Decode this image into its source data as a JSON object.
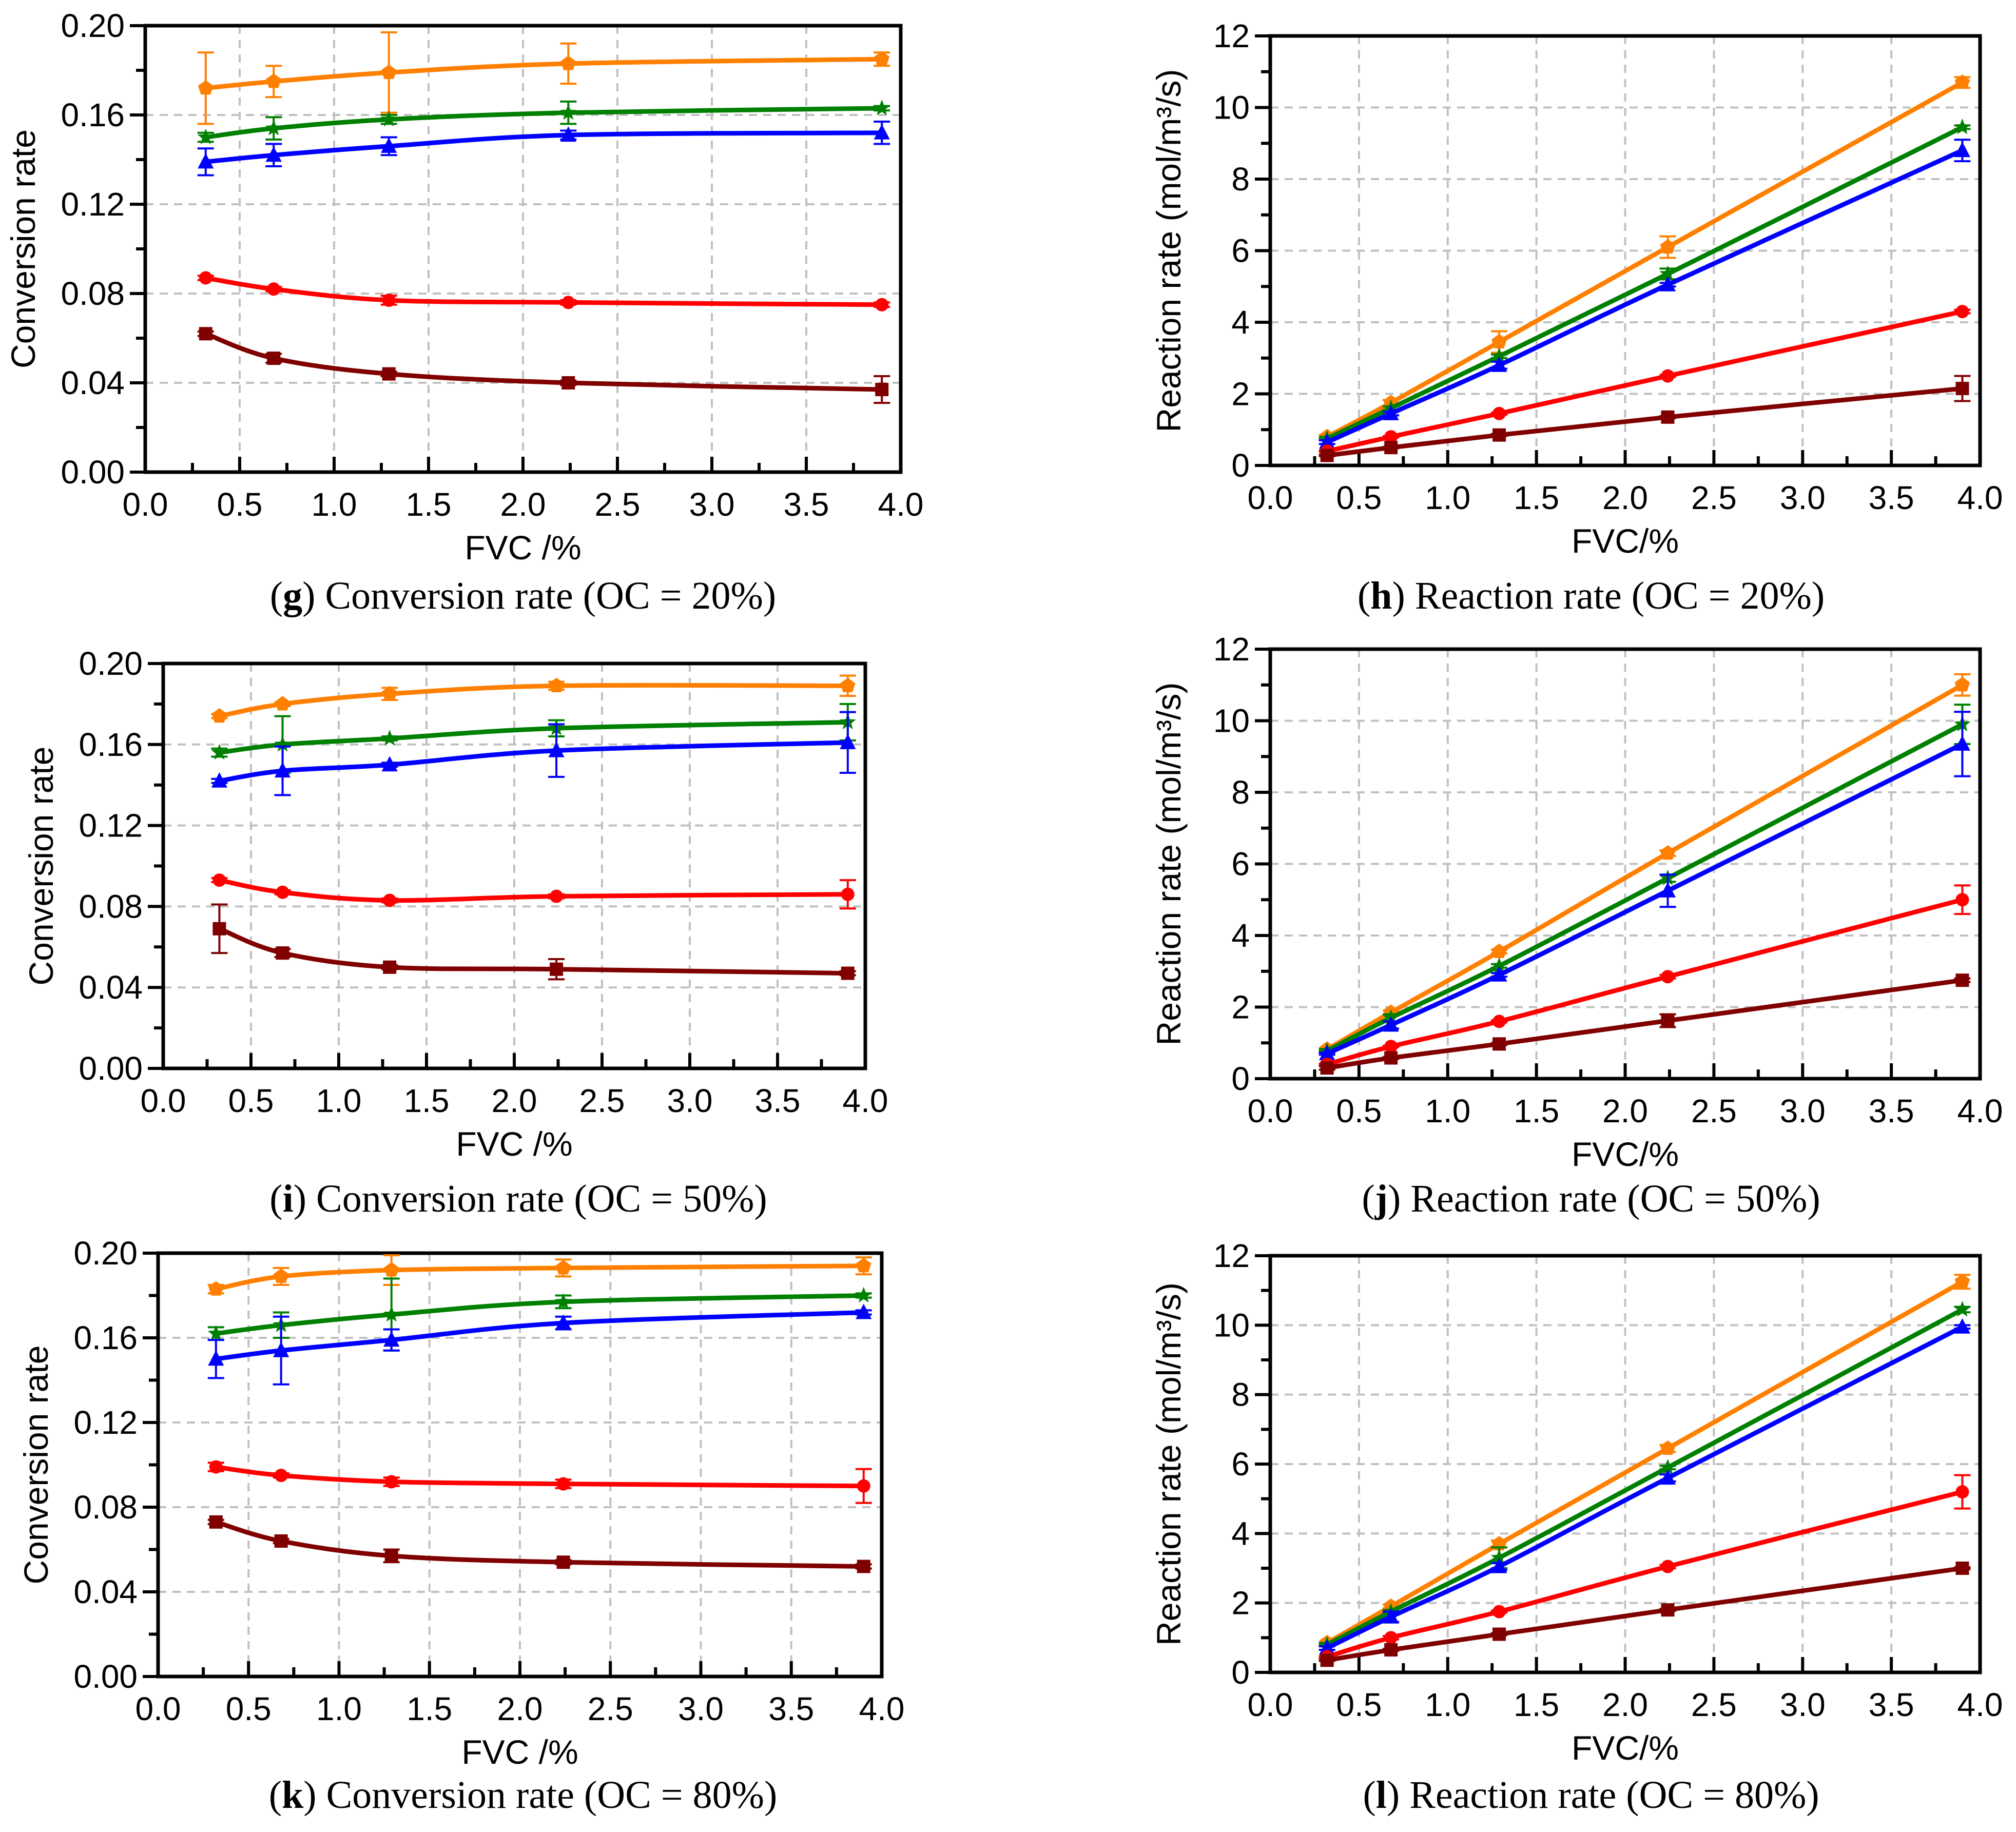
{
  "chart_data": [
    {
      "id": "g",
      "type": "line",
      "caption": {
        "letter": "g",
        "text": "Conversion rate (OC = 20%)"
      },
      "xlabel": "FVC /%",
      "ylabel": "Conversion rate",
      "xlim": [
        0,
        4
      ],
      "ylim": [
        0,
        0.2
      ],
      "xticks": [
        "0.0",
        "0.5",
        "1.0",
        "1.5",
        "2.0",
        "2.5",
        "3.0",
        "3.5",
        "4.0"
      ],
      "yticks": [
        "0.00",
        "0.04",
        "0.08",
        "0.12",
        "0.16",
        "0.20"
      ],
      "grid": true,
      "x": [
        0.32,
        0.68,
        1.29,
        2.24,
        3.9
      ],
      "series": [
        {
          "color": "#ff8000",
          "marker": "pentagon",
          "values": [
            0.172,
            0.175,
            0.179,
            0.183,
            0.185
          ],
          "errors": [
            0.016,
            0.007,
            0.018,
            0.009,
            0.003
          ]
        },
        {
          "color": "#008000",
          "marker": "star",
          "values": [
            0.15,
            0.154,
            0.158,
            0.161,
            0.163
          ],
          "errors": [
            0.002,
            0.005,
            0.002,
            0.005,
            0.001
          ]
        },
        {
          "color": "#0000ff",
          "marker": "triangle",
          "values": [
            0.139,
            0.142,
            0.146,
            0.151,
            0.152
          ],
          "errors": [
            0.006,
            0.005,
            0.004,
            0.002,
            0.005
          ]
        },
        {
          "color": "#ff0000",
          "marker": "circle",
          "values": [
            0.087,
            0.082,
            0.077,
            0.076,
            0.075
          ],
          "errors": [
            0.001,
            0.001,
            0.002,
            0.001,
            0.001
          ]
        },
        {
          "color": "#800000",
          "marker": "square",
          "values": [
            0.062,
            0.051,
            0.044,
            0.04,
            0.037
          ],
          "errors": [
            0.001,
            0.002,
            0.001,
            0.001,
            0.006
          ]
        }
      ]
    },
    {
      "id": "h",
      "type": "line",
      "caption": {
        "letter": "h",
        "text": "Reaction rate (OC = 20%)"
      },
      "xlabel": "FVC/%",
      "ylabel": "Reaction rate (mol/m³/s)",
      "xlim": [
        0,
        4
      ],
      "ylim": [
        0,
        12
      ],
      "xticks": [
        "0.0",
        "0.5",
        "1.0",
        "1.5",
        "2.0",
        "2.5",
        "3.0",
        "3.5",
        "4.0"
      ],
      "yticks": [
        "0",
        "2",
        "4",
        "6",
        "8",
        "10",
        "12"
      ],
      "grid": true,
      "x": [
        0.32,
        0.68,
        1.29,
        2.24,
        3.9
      ],
      "series": [
        {
          "color": "#ff8000",
          "marker": "pentagon",
          "values": [
            0.8,
            1.75,
            3.45,
            6.1,
            10.7
          ],
          "errors": [
            0.05,
            0.08,
            0.3,
            0.3,
            0.15
          ]
        },
        {
          "color": "#008000",
          "marker": "star",
          "values": [
            0.75,
            1.6,
            3.05,
            5.35,
            9.45
          ],
          "errors": [
            0.03,
            0.05,
            0.05,
            0.15,
            0.05
          ]
        },
        {
          "color": "#0000ff",
          "marker": "triangle",
          "values": [
            0.65,
            1.45,
            2.8,
            5.05,
            8.8
          ],
          "errors": [
            0.05,
            0.05,
            0.1,
            0.05,
            0.3
          ]
        },
        {
          "color": "#ff0000",
          "marker": "circle",
          "values": [
            0.4,
            0.8,
            1.45,
            2.5,
            4.3
          ],
          "errors": [
            0.02,
            0.02,
            0.03,
            0.03,
            0.05
          ]
        },
        {
          "color": "#800000",
          "marker": "square",
          "values": [
            0.28,
            0.5,
            0.85,
            1.35,
            2.15
          ],
          "errors": [
            0.02,
            0.02,
            0.03,
            0.03,
            0.35
          ]
        }
      ]
    },
    {
      "id": "i",
      "type": "line",
      "caption": {
        "letter": "i",
        "text": "Conversion rate (OC = 50%)"
      },
      "xlabel": "FVC /%",
      "ylabel": "Conversion rate",
      "xlim": [
        0,
        4
      ],
      "ylim": [
        0,
        0.2
      ],
      "xticks": [
        "0.0",
        "0.5",
        "1.0",
        "1.5",
        "2.0",
        "2.5",
        "3.0",
        "3.5",
        "4.0"
      ],
      "yticks": [
        "0.00",
        "0.04",
        "0.08",
        "0.12",
        "0.16",
        "0.20"
      ],
      "grid": true,
      "x": [
        0.32,
        0.68,
        1.29,
        2.24,
        3.9
      ],
      "series": [
        {
          "color": "#ff8000",
          "marker": "pentagon",
          "values": [
            0.174,
            0.18,
            0.185,
            0.189,
            0.189
          ],
          "errors": [
            0.001,
            0.001,
            0.003,
            0.002,
            0.005
          ]
        },
        {
          "color": "#008000",
          "marker": "star",
          "values": [
            0.156,
            0.16,
            0.163,
            0.168,
            0.171
          ],
          "errors": [
            0.002,
            0.014,
            0.001,
            0.004,
            0.009
          ]
        },
        {
          "color": "#0000ff",
          "marker": "triangle",
          "values": [
            0.142,
            0.147,
            0.15,
            0.157,
            0.161
          ],
          "errors": [
            0.001,
            0.012,
            0.001,
            0.013,
            0.015
          ]
        },
        {
          "color": "#ff0000",
          "marker": "circle",
          "values": [
            0.093,
            0.087,
            0.083,
            0.085,
            0.086
          ],
          "errors": [
            0.001,
            0.001,
            0.001,
            0.001,
            0.007
          ]
        },
        {
          "color": "#800000",
          "marker": "square",
          "values": [
            0.069,
            0.057,
            0.05,
            0.049,
            0.047
          ],
          "errors": [
            0.012,
            0.002,
            0.001,
            0.005,
            0.001
          ]
        }
      ]
    },
    {
      "id": "j",
      "type": "line",
      "caption": {
        "letter": "j",
        "text": "Reaction rate (OC = 50%)"
      },
      "xlabel": "FVC/%",
      "ylabel": "Reaction rate (mol/m³/s)",
      "xlim": [
        0,
        4
      ],
      "ylim": [
        0,
        12
      ],
      "xticks": [
        "0.0",
        "0.5",
        "1.0",
        "1.5",
        "2.0",
        "2.5",
        "3.0",
        "3.5",
        "4.0"
      ],
      "yticks": [
        "0",
        "2",
        "4",
        "6",
        "8",
        "10",
        "12"
      ],
      "grid": true,
      "x": [
        0.32,
        0.68,
        1.29,
        2.24,
        3.9
      ],
      "series": [
        {
          "color": "#ff8000",
          "marker": "pentagon",
          "values": [
            0.82,
            1.85,
            3.55,
            6.3,
            11.0
          ],
          "errors": [
            0.03,
            0.05,
            0.05,
            0.08,
            0.3
          ]
        },
        {
          "color": "#008000",
          "marker": "star",
          "values": [
            0.78,
            1.7,
            3.15,
            5.6,
            9.9
          ],
          "errors": [
            0.03,
            0.1,
            0.05,
            0.1,
            0.55
          ]
        },
        {
          "color": "#0000ff",
          "marker": "triangle",
          "values": [
            0.7,
            1.5,
            2.9,
            5.25,
            9.35
          ],
          "errors": [
            0.03,
            0.1,
            0.05,
            0.45,
            0.9
          ]
        },
        {
          "color": "#ff0000",
          "marker": "circle",
          "values": [
            0.4,
            0.9,
            1.6,
            2.85,
            5.0
          ],
          "errors": [
            0.02,
            0.02,
            0.03,
            0.05,
            0.4
          ]
        },
        {
          "color": "#800000",
          "marker": "square",
          "values": [
            0.3,
            0.58,
            0.97,
            1.62,
            2.75
          ],
          "errors": [
            0.05,
            0.03,
            0.03,
            0.18,
            0.05
          ]
        }
      ]
    },
    {
      "id": "k",
      "type": "line",
      "caption": {
        "letter": "k",
        "text": "Conversion rate (OC = 80%)"
      },
      "xlabel": "FVC /%",
      "ylabel": "Conversion rate",
      "xlim": [
        0,
        4
      ],
      "ylim": [
        0,
        0.2
      ],
      "xticks": [
        "0.0",
        "0.5",
        "1.0",
        "1.5",
        "2.0",
        "2.5",
        "3.0",
        "3.5",
        "4.0"
      ],
      "yticks": [
        "0.00",
        "0.04",
        "0.08",
        "0.12",
        "0.16",
        "0.20"
      ],
      "grid": true,
      "x": [
        0.32,
        0.68,
        1.29,
        2.24,
        3.9
      ],
      "series": [
        {
          "color": "#ff8000",
          "marker": "pentagon",
          "values": [
            0.183,
            0.189,
            0.192,
            0.193,
            0.194
          ],
          "errors": [
            0.002,
            0.004,
            0.007,
            0.004,
            0.004
          ]
        },
        {
          "color": "#008000",
          "marker": "star",
          "values": [
            0.162,
            0.166,
            0.171,
            0.177,
            0.18
          ],
          "errors": [
            0.003,
            0.006,
            0.017,
            0.003,
            0.001
          ]
        },
        {
          "color": "#0000ff",
          "marker": "triangle",
          "values": [
            0.15,
            0.154,
            0.159,
            0.167,
            0.172
          ],
          "errors": [
            0.009,
            0.016,
            0.005,
            0.003,
            0.001
          ]
        },
        {
          "color": "#ff0000",
          "marker": "circle",
          "values": [
            0.099,
            0.095,
            0.092,
            0.091,
            0.09
          ],
          "errors": [
            0.002,
            0.001,
            0.002,
            0.002,
            0.008
          ]
        },
        {
          "color": "#800000",
          "marker": "square",
          "values": [
            0.073,
            0.064,
            0.057,
            0.054,
            0.052
          ],
          "errors": [
            0.001,
            0.001,
            0.003,
            0.001,
            0.001
          ]
        }
      ]
    },
    {
      "id": "l",
      "type": "line",
      "caption": {
        "letter": "l",
        "text": "Reaction rate (OC = 80%)"
      },
      "xlabel": "FVC/%",
      "ylabel": "Reaction rate (mol/m³/s)",
      "xlim": [
        0,
        4
      ],
      "ylim": [
        0,
        12
      ],
      "xticks": [
        "0.0",
        "0.5",
        "1.0",
        "1.5",
        "2.0",
        "2.5",
        "3.0",
        "3.5",
        "4.0"
      ],
      "yticks": [
        "0",
        "2",
        "4",
        "6",
        "8",
        "10",
        "12"
      ],
      "grid": true,
      "x": [
        0.32,
        0.68,
        1.29,
        2.24,
        3.9
      ],
      "series": [
        {
          "color": "#ff8000",
          "marker": "pentagon",
          "values": [
            0.85,
            1.9,
            3.7,
            6.45,
            11.25
          ],
          "errors": [
            0.03,
            0.05,
            0.1,
            0.1,
            0.2
          ]
        },
        {
          "color": "#008000",
          "marker": "star",
          "values": [
            0.8,
            1.75,
            3.3,
            5.9,
            10.45
          ],
          "errors": [
            0.03,
            0.05,
            0.3,
            0.05,
            0.08
          ]
        },
        {
          "color": "#0000ff",
          "marker": "triangle",
          "values": [
            0.7,
            1.6,
            3.05,
            5.6,
            9.95
          ],
          "errors": [
            0.05,
            0.15,
            0.1,
            0.1,
            0.05
          ]
        },
        {
          "color": "#ff0000",
          "marker": "circle",
          "values": [
            0.45,
            1.0,
            1.75,
            3.05,
            5.2
          ],
          "errors": [
            0.02,
            0.05,
            0.03,
            0.05,
            0.48
          ]
        },
        {
          "color": "#800000",
          "marker": "square",
          "values": [
            0.35,
            0.65,
            1.1,
            1.8,
            3.0
          ],
          "errors": [
            0.02,
            0.03,
            0.03,
            0.03,
            0.03
          ]
        }
      ]
    }
  ]
}
